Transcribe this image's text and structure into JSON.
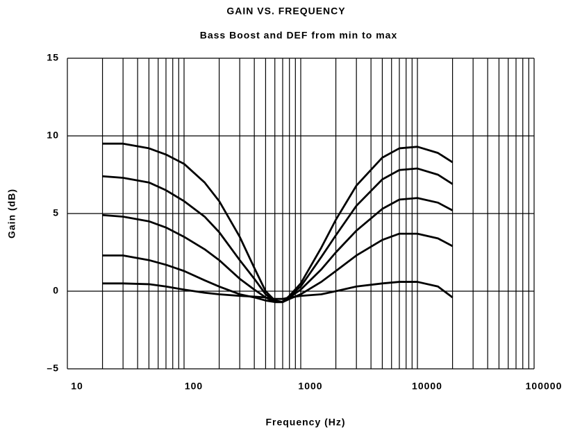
{
  "chart_data": {
    "type": "line",
    "title": "GAIN VS. FREQUENCY",
    "subtitle": "Bass Boost and DEF from min to max",
    "x_label": "Frequency (Hz)",
    "y_label": "Gain (dB)",
    "x": [
      20,
      30,
      50,
      70,
      100,
      150,
      200,
      300,
      400,
      500,
      600,
      700,
      800,
      1000,
      1500,
      2000,
      3000,
      5000,
      7000,
      10000,
      15000,
      20000
    ],
    "series": [
      {
        "color": "#000000",
        "values": [
          9.5,
          9.5,
          9.2,
          8.8,
          8.2,
          7,
          5.8,
          3.5,
          1.5,
          0,
          -0.6,
          -0.7,
          -0.3,
          0.5,
          2.8,
          4.6,
          6.8,
          8.6,
          9.2,
          9.3,
          8.9,
          8.3
        ]
      },
      {
        "color": "#000000",
        "values": [
          7.4,
          7.3,
          7.0,
          6.5,
          5.8,
          4.8,
          3.8,
          2.0,
          0.8,
          -0.2,
          -0.6,
          -0.7,
          -0.3,
          0.3,
          2.2,
          3.6,
          5.5,
          7.2,
          7.8,
          7.9,
          7.5,
          6.9
        ]
      },
      {
        "color": "#000000",
        "values": [
          4.9,
          4.8,
          4.5,
          4.1,
          3.5,
          2.7,
          2.0,
          0.8,
          0.1,
          -0.4,
          -0.7,
          -0.7,
          -0.4,
          0.1,
          1.4,
          2.5,
          3.9,
          5.3,
          5.9,
          6.0,
          5.7,
          5.2
        ]
      },
      {
        "color": "#000000",
        "values": [
          2.3,
          2.3,
          2.0,
          1.7,
          1.3,
          0.7,
          0.3,
          -0.2,
          -0.4,
          -0.6,
          -0.7,
          -0.7,
          -0.5,
          -0.2,
          0.6,
          1.3,
          2.3,
          3.3,
          3.7,
          3.7,
          3.4,
          2.9
        ]
      },
      {
        "color": "#000000",
        "values": [
          0.5,
          0.5,
          0.45,
          0.3,
          0.1,
          -0.1,
          -0.2,
          -0.3,
          -0.35,
          -0.4,
          -0.5,
          -0.5,
          -0.4,
          -0.3,
          -0.2,
          0,
          0.3,
          0.5,
          0.6,
          0.6,
          0.3,
          -0.4
        ]
      }
    ],
    "xlim": [
      10,
      100000
    ],
    "xticks": [
      10,
      100,
      1000,
      10000,
      100000
    ],
    "x_log": true,
    "ylim": [
      -5,
      15
    ],
    "yticks": [
      {
        "value": -5,
        "label": "–5"
      },
      0,
      5,
      10,
      15
    ],
    "grid": true
  }
}
